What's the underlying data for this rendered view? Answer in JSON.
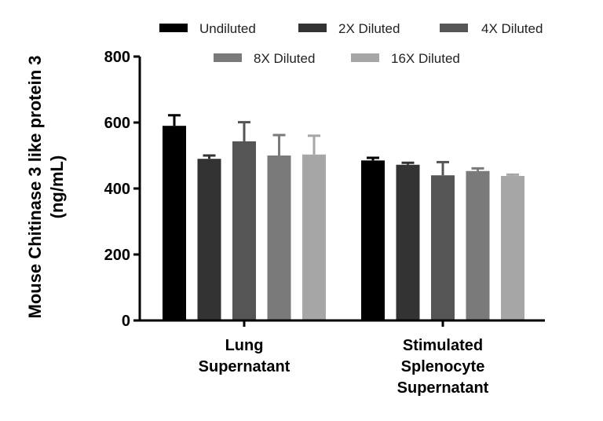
{
  "chart_data": {
    "type": "bar",
    "ylabel_line1": "Mouse Chitinase 3 like protein 3",
    "ylabel_line2": "(ng/mL)",
    "ylim": [
      0,
      800
    ],
    "yticks": [
      0,
      200,
      400,
      600,
      800
    ],
    "categories": [
      [
        "Lung",
        "Supernatant"
      ],
      [
        "Stimulated",
        "Splenocyte",
        "Supernatant"
      ]
    ],
    "series": [
      {
        "name": "Undiluted",
        "color": "#000000",
        "values": [
          590,
          485
        ],
        "errors": [
          32,
          8
        ]
      },
      {
        "name": "2X Diluted",
        "color": "#333333",
        "values": [
          490,
          472
        ],
        "errors": [
          10,
          6
        ]
      },
      {
        "name": "4X Diluted",
        "color": "#555555",
        "values": [
          543,
          440
        ],
        "errors": [
          58,
          40
        ]
      },
      {
        "name": "8X Diluted",
        "color": "#7a7a7a",
        "values": [
          500,
          453
        ],
        "errors": [
          62,
          8
        ]
      },
      {
        "name": "16X Diluted",
        "color": "#a6a6a6",
        "values": [
          503,
          438
        ],
        "errors": [
          57,
          4
        ]
      }
    ],
    "legend_position": "top"
  }
}
